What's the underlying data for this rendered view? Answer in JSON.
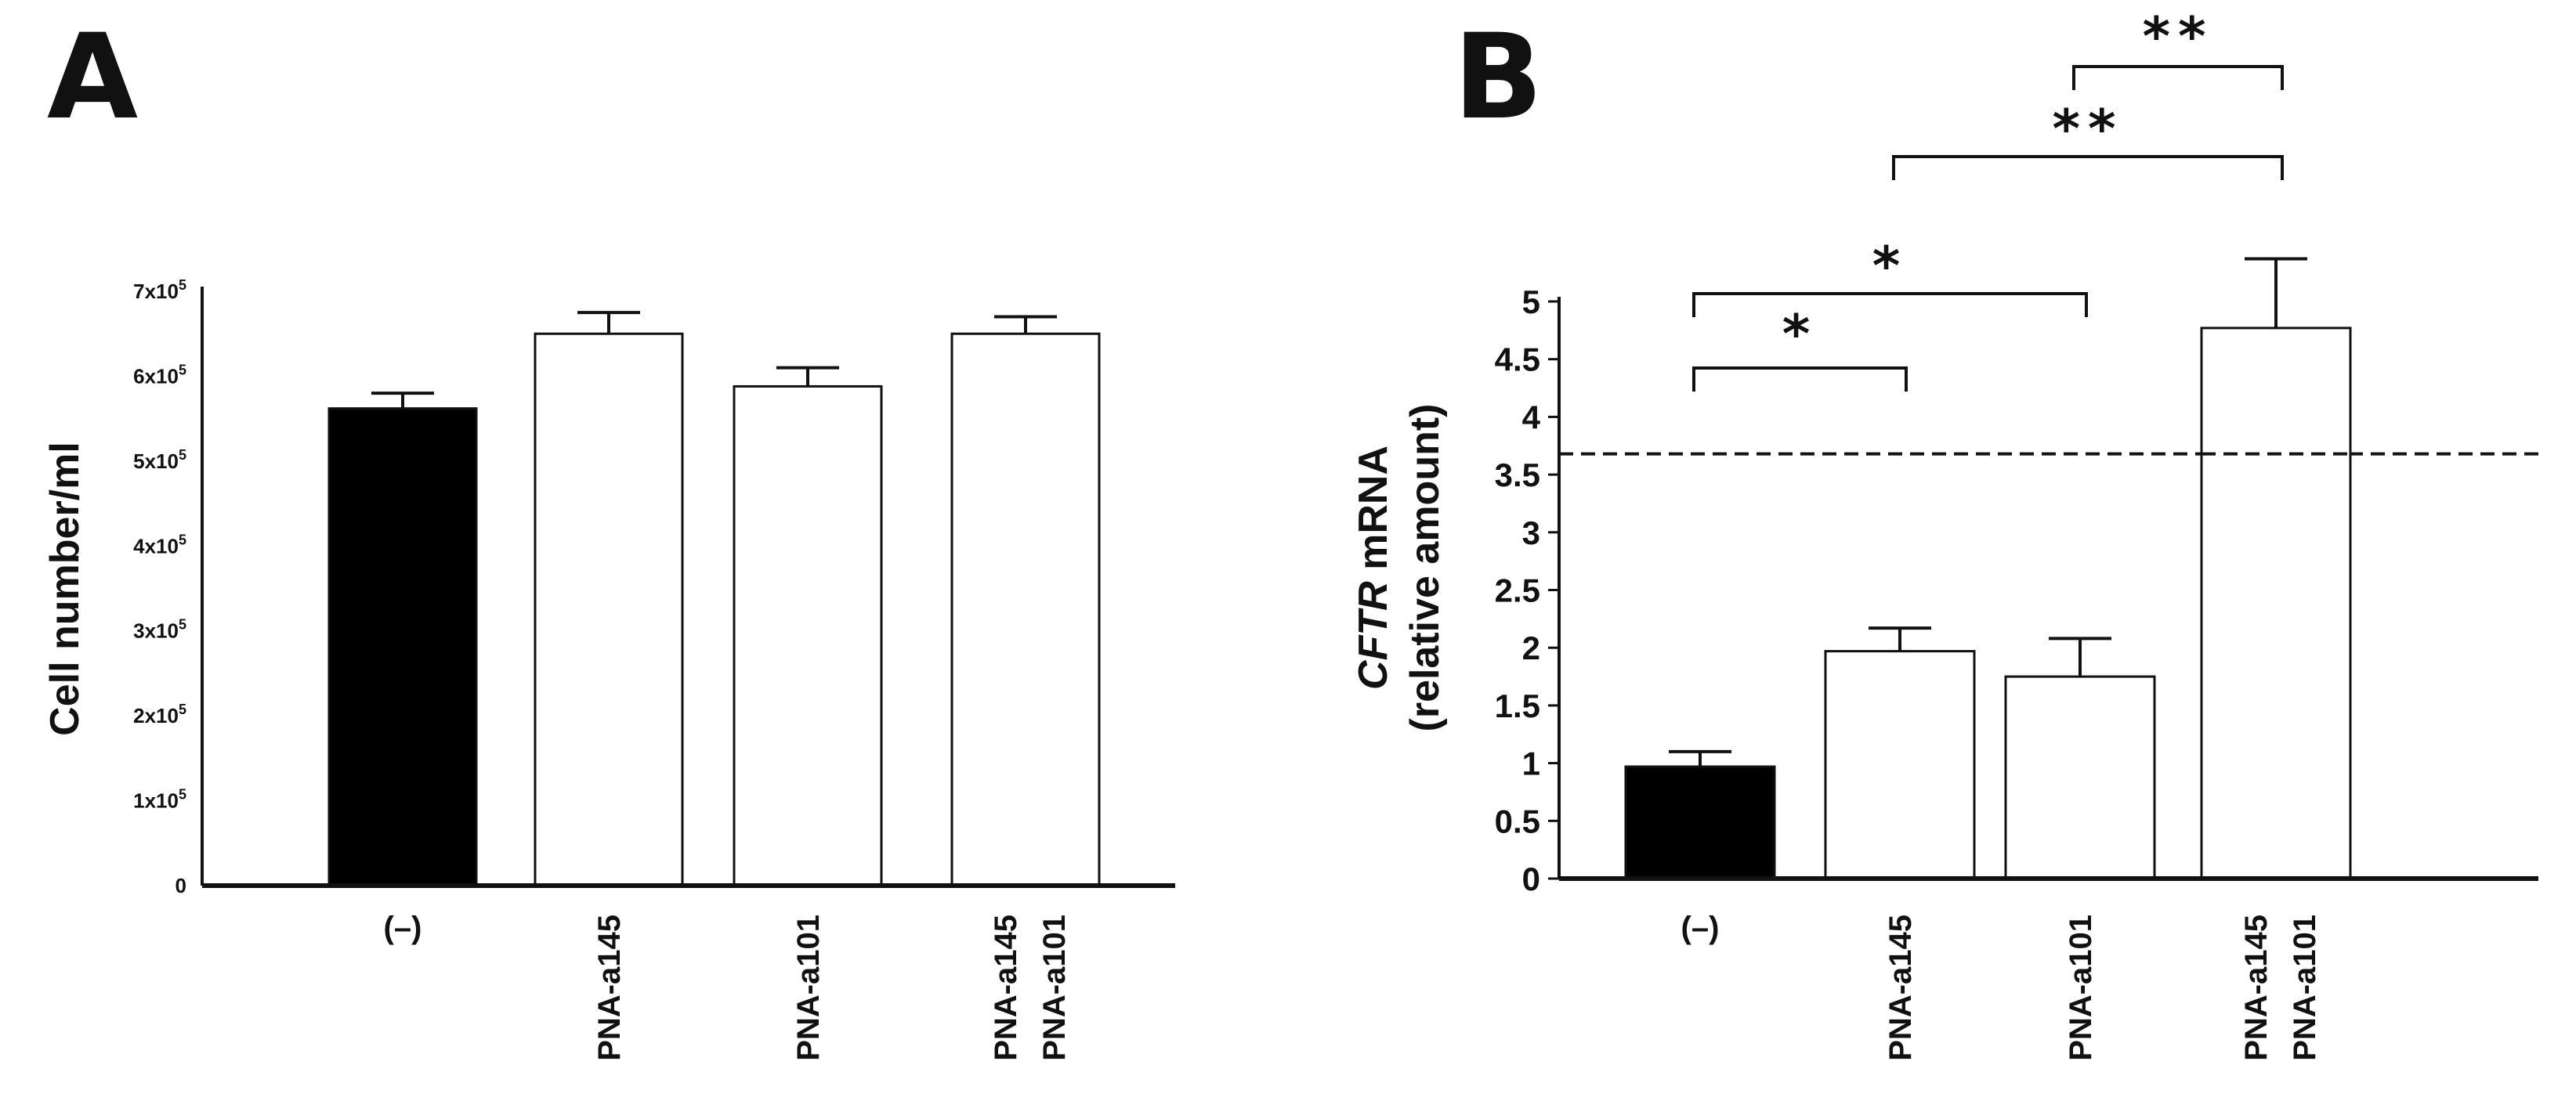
{
  "chart_data": [
    {
      "panel": "A",
      "type": "bar",
      "ylabel": "Cell number/ml",
      "ylim": [
        0,
        700000
      ],
      "yticks": [
        {
          "value": 0,
          "base": "0",
          "exp": ""
        },
        {
          "value": 100000,
          "base": "1x10",
          "exp": "5"
        },
        {
          "value": 200000,
          "base": "2x10",
          "exp": "5"
        },
        {
          "value": 300000,
          "base": "3x10",
          "exp": "5"
        },
        {
          "value": 400000,
          "base": "4x10",
          "exp": "5"
        },
        {
          "value": 500000,
          "base": "5x10",
          "exp": "5"
        },
        {
          "value": 600000,
          "base": "6x10",
          "exp": "5"
        },
        {
          "value": 700000,
          "base": "7x10",
          "exp": "5"
        }
      ],
      "categories": [
        [
          "(–)"
        ],
        [
          "PNA-a145"
        ],
        [
          "PNA-a101"
        ],
        [
          "PNA-a145",
          "PNA-a101"
        ]
      ],
      "values": [
        562000,
        650000,
        588000,
        650000
      ],
      "errors": [
        18000,
        25000,
        22000,
        20000
      ],
      "fills": [
        "#000000",
        "#ffffff",
        "#ffffff",
        "#ffffff"
      ]
    },
    {
      "panel": "B",
      "type": "bar",
      "ylabel_italic": "CFTR",
      "ylabel_rest": " mRNA",
      "ylabel_line2": "(relative amount)",
      "ylim": [
        0,
        5
      ],
      "yticks": [
        "0",
        "0.5",
        "1",
        "1.5",
        "2",
        "2.5",
        "3",
        "3.5",
        "4",
        "4.5",
        "5"
      ],
      "categories": [
        [
          "(–)"
        ],
        [
          "PNA-a145"
        ],
        [
          "PNA-a101"
        ],
        [
          "PNA-a145",
          "PNA-a101"
        ]
      ],
      "values": [
        0.97,
        1.97,
        1.75,
        4.77
      ],
      "errors": [
        0.13,
        0.2,
        0.33,
        0.6
      ],
      "fills": [
        "#000000",
        "#ffffff",
        "#ffffff",
        "#ffffff"
      ],
      "reference_line": 3.68,
      "significance": [
        {
          "from": 0,
          "to": 1,
          "label": "*"
        },
        {
          "from": 0,
          "to": 2,
          "label": "*"
        },
        {
          "from": 1,
          "to": 3,
          "label": "**"
        },
        {
          "from": 2,
          "to": 3,
          "label": "**"
        }
      ]
    }
  ],
  "panels": {
    "a": "A",
    "b": "B"
  }
}
